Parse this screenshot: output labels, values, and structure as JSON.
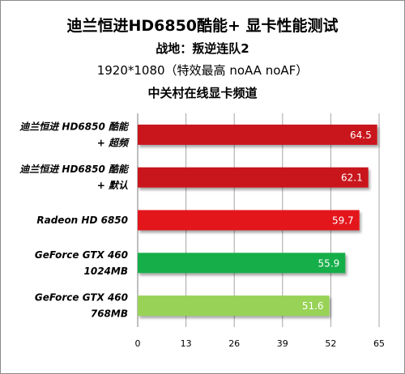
{
  "chart_data": {
    "type": "bar",
    "orientation": "horizontal",
    "title": "迪兰恒进HD6850酷能+ 显卡性能测试",
    "subtitle_lines": [
      "战地：叛逆连队2",
      "1920*1080（特效最高 noAA noAF）",
      "中关村在线显卡频道"
    ],
    "categories": [
      [
        "迪兰恒进 HD6850 酷能",
        "+ 超频"
      ],
      [
        "迪兰恒进 HD6850 酷能",
        "+ 默认"
      ],
      [
        "Radeon HD 6850"
      ],
      [
        "GeForce GTX 460",
        "1024MB"
      ],
      [
        "GeForce GTX 460",
        "768MB"
      ]
    ],
    "values": [
      64.5,
      62.1,
      59.7,
      55.9,
      51.6
    ],
    "colors": [
      "#c8141e",
      "#c8141e",
      "#e3171f",
      "#14ae4a",
      "#98d256"
    ],
    "xlim": [
      0,
      65
    ],
    "xticks": [
      "0",
      "13",
      "26",
      "39",
      "52",
      "65"
    ],
    "grid": true,
    "legend": "none"
  }
}
